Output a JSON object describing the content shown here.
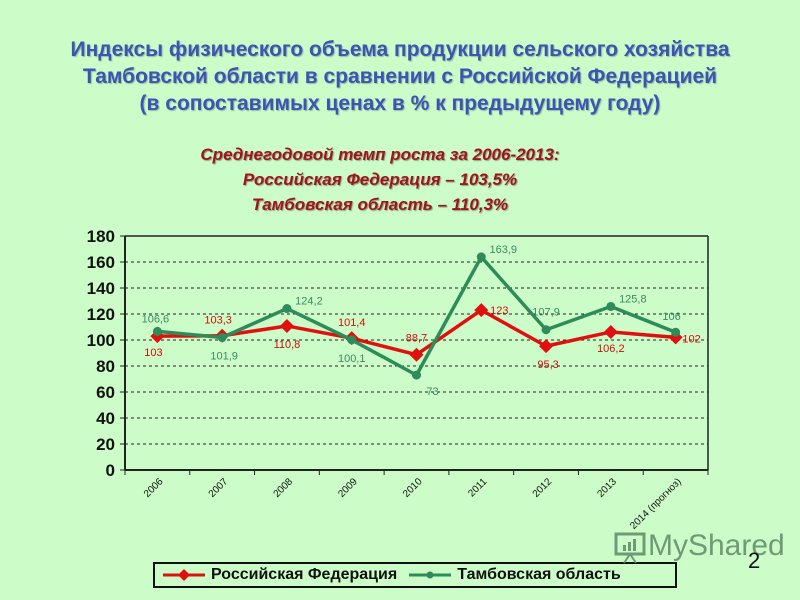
{
  "title": {
    "line1": "Индексы физического объема продукции сельского хозяйства",
    "line2": "Тамбовской области в сравнении с Российской Федерацией",
    "line3": "(в сопоставимых ценах в % к предыдущему году)"
  },
  "subtitle": {
    "line1": "Среднегодовой темп роста за 2006-2013:",
    "line2": "Российская Федерация – 103,5%",
    "line3": "Тамбовская область – 110,3%"
  },
  "legend": {
    "series1": "Российская Федерация",
    "series2": "Тамбовская область"
  },
  "watermark": "MyShared",
  "page_number": "2",
  "colors": {
    "background": "#ccfcc8",
    "title": "#3a55b4",
    "subtitle": "#a3141a",
    "rf_series": "#e01010",
    "tambov_series": "#2e8b5a"
  },
  "chart_data": {
    "type": "line",
    "title": "Индексы физического объема продукции сельского хозяйства Тамбовской области в сравнении с Российской Федерацией (в сопоставимых ценах в % к предыдущему году)",
    "xlabel": "",
    "ylabel": "",
    "ylim": [
      0,
      180
    ],
    "yticks": [
      0,
      20,
      40,
      60,
      80,
      100,
      120,
      140,
      160,
      180
    ],
    "grid": true,
    "legend_position": "bottom",
    "categories": [
      "2006",
      "2007",
      "2008",
      "2009",
      "2010",
      "2011",
      "2012",
      "2013",
      "2014 (прогноз)"
    ],
    "series": [
      {
        "name": "Российская Федерация",
        "values": [
          103,
          103.3,
          110.8,
          101.4,
          88.7,
          123,
          95.3,
          106.2,
          102
        ],
        "labels": [
          "103",
          "103,3",
          "110,8",
          "101,4",
          "88,7",
          "123",
          "95,3",
          "106,2",
          "102"
        ],
        "color": "#e01010",
        "marker": "diamond"
      },
      {
        "name": "Тамбовская область",
        "values": [
          106.6,
          101.9,
          124.2,
          100.1,
          73,
          163.9,
          107.9,
          125.8,
          106
        ],
        "labels": [
          "106,6",
          "101,9",
          "124,2",
          "100,1",
          "73",
          "163,9",
          "107,9",
          "125,8",
          "106"
        ],
        "color": "#2e8b5a",
        "marker": "circle"
      }
    ]
  }
}
